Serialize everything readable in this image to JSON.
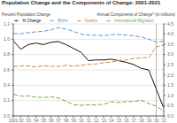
{
  "chart_data": {
    "type": "line",
    "title": "Population Change and the Components of Change: 2001-2021",
    "ylabel": "Percent Population Change",
    "y2label": "Annual Components of Change* (in millions)",
    "x": [
      2001,
      2002,
      2003,
      2004,
      2005,
      2006,
      2007,
      2008,
      2009,
      2010,
      2011,
      2012,
      2013,
      2014,
      2015,
      2016,
      2017,
      2018,
      2019,
      2020,
      2021
    ],
    "xlim": [
      2001,
      2021
    ],
    "xticks": [
      2001,
      {
        "value": 2002,
        "label": "'02"
      },
      {
        "value": 2003,
        "label": "'03"
      },
      {
        "value": 2004,
        "label": "'04"
      },
      {
        "value": 2005,
        "label": "'05"
      },
      {
        "value": 2006,
        "label": "'06"
      },
      {
        "value": 2007,
        "label": "'07"
      },
      {
        "value": 2008,
        "label": "'08"
      },
      {
        "value": 2009,
        "label": "'09"
      },
      {
        "value": 2010,
        "label": "'10"
      },
      {
        "value": 2011,
        "label": "'11"
      },
      {
        "value": 2012,
        "label": "'12"
      },
      {
        "value": 2013,
        "label": "'13"
      },
      {
        "value": 2014,
        "label": "'14"
      },
      {
        "value": 2015,
        "label": "'15"
      },
      {
        "value": 2016,
        "label": "'16"
      },
      {
        "value": 2017,
        "label": "'17"
      },
      {
        "value": 2018,
        "label": "'18"
      },
      {
        "value": 2019,
        "label": "'19"
      },
      {
        "value": 2020,
        "label": "'20"
      },
      {
        "value": 2021,
        "label": "'21"
      }
    ],
    "ylim": [
      0,
      1.2
    ],
    "yticks": [
      {
        "value": 0,
        "label": "0.0"
      },
      0.2,
      0.4,
      0.6,
      0.8,
      {
        "value": 1.0,
        "label": "1.0"
      },
      1.2
    ],
    "y2lim": [
      0,
      4.5
    ],
    "y2ticks": [
      {
        "value": 0,
        "label": "0.0"
      },
      0.5,
      {
        "value": 1,
        "label": "1.0"
      },
      1.5,
      {
        "value": 2,
        "label": "2.0"
      },
      2.5,
      {
        "value": 3,
        "label": "3.0"
      },
      3.5,
      {
        "value": 4,
        "label": "4.0"
      },
      4.5
    ],
    "grid": true,
    "legend": "top",
    "vlines": [
      2020
    ],
    "series": [
      {
        "name": "% Change",
        "color": "#111111",
        "line_style": "solid",
        "values": [
          0.98,
          0.87,
          0.93,
          0.95,
          0.93,
          0.96,
          0.97,
          0.93,
          0.88,
          0.83,
          0.72,
          0.73,
          0.73,
          0.74,
          0.72,
          0.7,
          0.67,
          0.62,
          0.6,
          0.35,
          0.1
        ]
      },
      {
        "name": "Births",
        "color": "#5b9bd5",
        "line_style": "dashed",
        "axis": "y2",
        "values": [
          4.03,
          4.02,
          4.07,
          4.11,
          4.14,
          4.21,
          4.32,
          4.25,
          4.13,
          4.0,
          3.95,
          3.95,
          3.93,
          3.97,
          3.98,
          3.95,
          3.92,
          3.86,
          3.75,
          3.61,
          3.66
        ]
      },
      {
        "name": "Deaths",
        "color": "#cc8844",
        "line_style": "dashed",
        "axis": "y2",
        "values": [
          2.42,
          2.44,
          2.45,
          2.4,
          2.45,
          2.43,
          2.42,
          2.47,
          2.44,
          2.47,
          2.52,
          2.54,
          2.6,
          2.63,
          2.71,
          2.74,
          2.81,
          2.84,
          2.85,
          3.38,
          3.46
        ]
      },
      {
        "name": "International Migration",
        "color": "#70ad47",
        "line_style": "dashed",
        "axis": "y2",
        "values": [
          1.06,
          0.97,
          0.98,
          0.92,
          0.9,
          0.93,
          0.88,
          0.72,
          0.55,
          0.52,
          0.54,
          0.54,
          0.57,
          0.69,
          0.66,
          0.7,
          0.7,
          0.77,
          0.6,
          0.48,
          0.24
        ]
      }
    ]
  }
}
